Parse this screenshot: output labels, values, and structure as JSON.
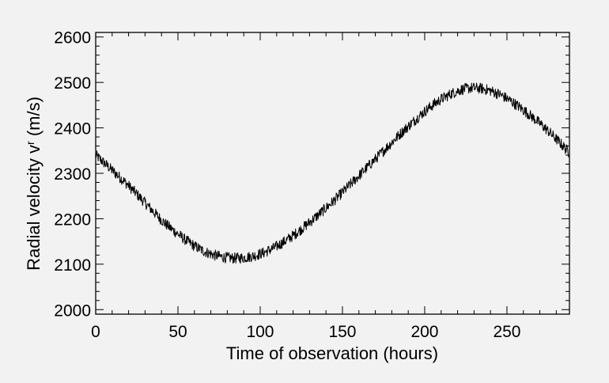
{
  "chart_data": {
    "type": "line",
    "title": "",
    "xlabel": "Time of observation (hours)",
    "ylabel_main": "Radial velocity v",
    "ylabel_sup": "r",
    "ylabel_unit": " (m/s)",
    "xlim": [
      0,
      288
    ],
    "ylim": [
      1990,
      2610
    ],
    "x_ticks": [
      0,
      50,
      100,
      150,
      200,
      250
    ],
    "y_ticks": [
      2000,
      2100,
      2200,
      2300,
      2400,
      2500,
      2600
    ],
    "x_minor_step": 10,
    "y_minor_step": 20,
    "grid": false,
    "legend": "none",
    "line_color": "#000000",
    "background": "#f2f2f2",
    "series": [
      {
        "x": [
          0,
          6,
          12,
          18,
          24,
          30,
          36,
          42,
          48,
          54,
          60,
          66,
          72,
          78,
          84,
          90,
          96,
          102,
          108,
          114,
          120,
          126,
          132,
          138,
          144,
          150,
          156,
          162,
          168,
          174,
          180,
          186,
          192,
          198,
          204,
          210,
          216,
          222,
          228,
          234,
          240,
          246,
          252,
          258,
          264,
          270,
          276,
          282,
          288
        ],
        "values": [
          2340,
          2320,
          2300,
          2280,
          2258,
          2235,
          2212,
          2190,
          2172,
          2155,
          2140,
          2128,
          2120,
          2115,
          2113,
          2114,
          2118,
          2125,
          2135,
          2148,
          2163,
          2180,
          2198,
          2217,
          2237,
          2258,
          2280,
          2302,
          2324,
          2346,
          2368,
          2390,
          2410,
          2430,
          2448,
          2463,
          2475,
          2484,
          2488,
          2487,
          2482,
          2473,
          2460,
          2445,
          2428,
          2410,
          2390,
          2368,
          2345
        ],
        "noise_amplitude": 12
      }
    ]
  }
}
